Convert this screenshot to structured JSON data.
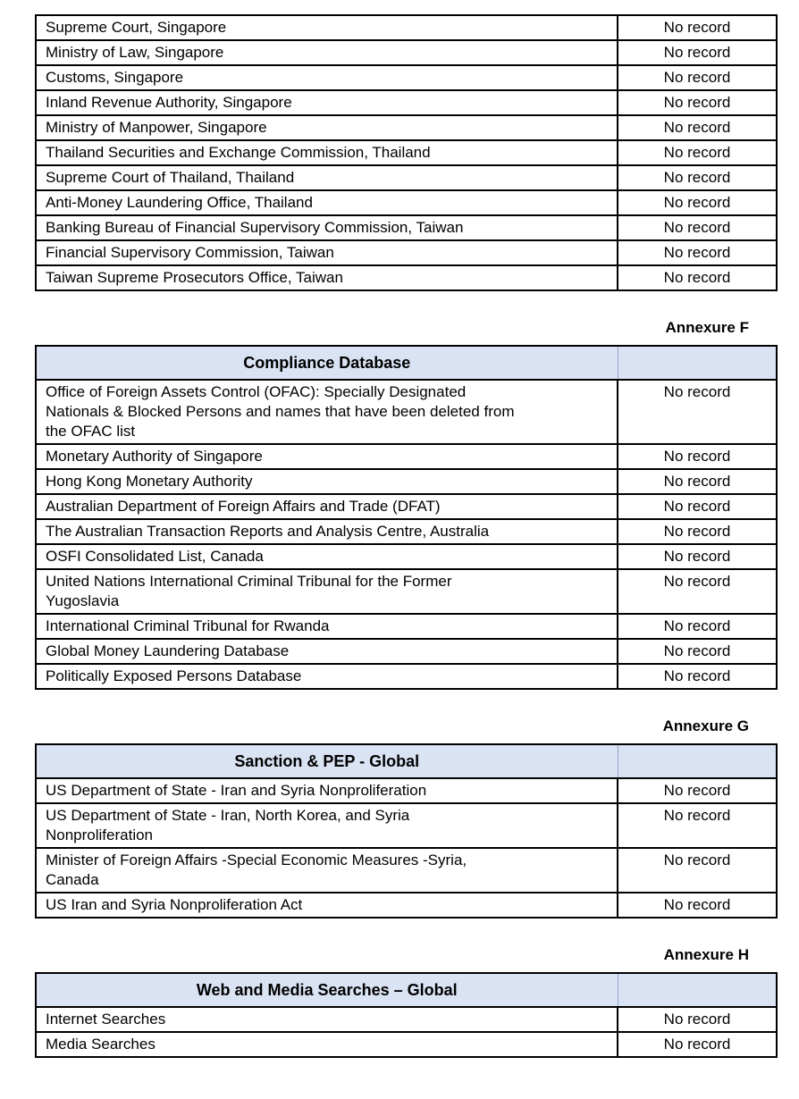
{
  "colors": {
    "table_header_bg": "#dae3f3",
    "table_border": "#000000",
    "text": "#000000",
    "page_bg": "#ffffff"
  },
  "tables": [
    {
      "annexure": "",
      "title": "",
      "rows": [
        {
          "source": "Supreme Court, Singapore",
          "result": "No record"
        },
        {
          "source": "Ministry of Law, Singapore",
          "result": "No record"
        },
        {
          "source": "Customs, Singapore",
          "result": "No record"
        },
        {
          "source": "Inland Revenue Authority, Singapore",
          "result": "No record"
        },
        {
          "source": "Ministry of Manpower, Singapore",
          "result": "No record"
        },
        {
          "source": "Thailand Securities and Exchange Commission, Thailand",
          "result": "No record"
        },
        {
          "source": "Supreme Court of Thailand, Thailand",
          "result": "No record"
        },
        {
          "source": "Anti-Money Laundering Office, Thailand",
          "result": "No record"
        },
        {
          "source": "Banking Bureau of Financial Supervisory Commission, Taiwan",
          "result": "No record"
        },
        {
          "source": "Financial Supervisory Commission, Taiwan",
          "result": "No record"
        },
        {
          "source": "Taiwan Supreme Prosecutors Office, Taiwan",
          "result": "No record"
        }
      ]
    },
    {
      "annexure": "Annexure F",
      "title": "Compliance Database",
      "rows": [
        {
          "source": "Office of Foreign Assets Control (OFAC): Specially Designated\nNationals & Blocked Persons and names that have been deleted from\nthe OFAC list",
          "result": "No record"
        },
        {
          "source": "Monetary Authority of Singapore",
          "result": "No record"
        },
        {
          "source": "Hong Kong Monetary Authority",
          "result": "No record"
        },
        {
          "source": "Australian Department of Foreign Affairs and Trade (DFAT)",
          "result": "No record"
        },
        {
          "source": "The Australian Transaction Reports and Analysis Centre, Australia",
          "result": "No record"
        },
        {
          "source": "OSFI Consolidated List, Canada",
          "result": "No record"
        },
        {
          "source": "United Nations International Criminal Tribunal for the Former\nYugoslavia",
          "result": "No record"
        },
        {
          "source": "International Criminal Tribunal for Rwanda",
          "result": "No record"
        },
        {
          "source": "Global Money Laundering Database",
          "result": "No record"
        },
        {
          "source": "Politically Exposed Persons Database",
          "result": "No record"
        }
      ]
    },
    {
      "annexure": "Annexure G",
      "title": "Sanction & PEP - Global",
      "rows": [
        {
          "source": "US Department of State - Iran and Syria Nonproliferation",
          "result": "No record"
        },
        {
          "source": "US Department of State - Iran, North Korea, and Syria\nNonproliferation",
          "result": "No record"
        },
        {
          "source": "Minister of Foreign Affairs -Special Economic Measures -Syria,\nCanada",
          "result": "No record"
        },
        {
          "source": "US Iran and Syria Nonproliferation Act",
          "result": "No record"
        }
      ]
    },
    {
      "annexure": "Annexure H",
      "title": "Web and Media Searches – Global",
      "rows": [
        {
          "source": "Internet Searches",
          "result": "No record"
        },
        {
          "source": "Media Searches",
          "result": "No record"
        }
      ]
    }
  ]
}
